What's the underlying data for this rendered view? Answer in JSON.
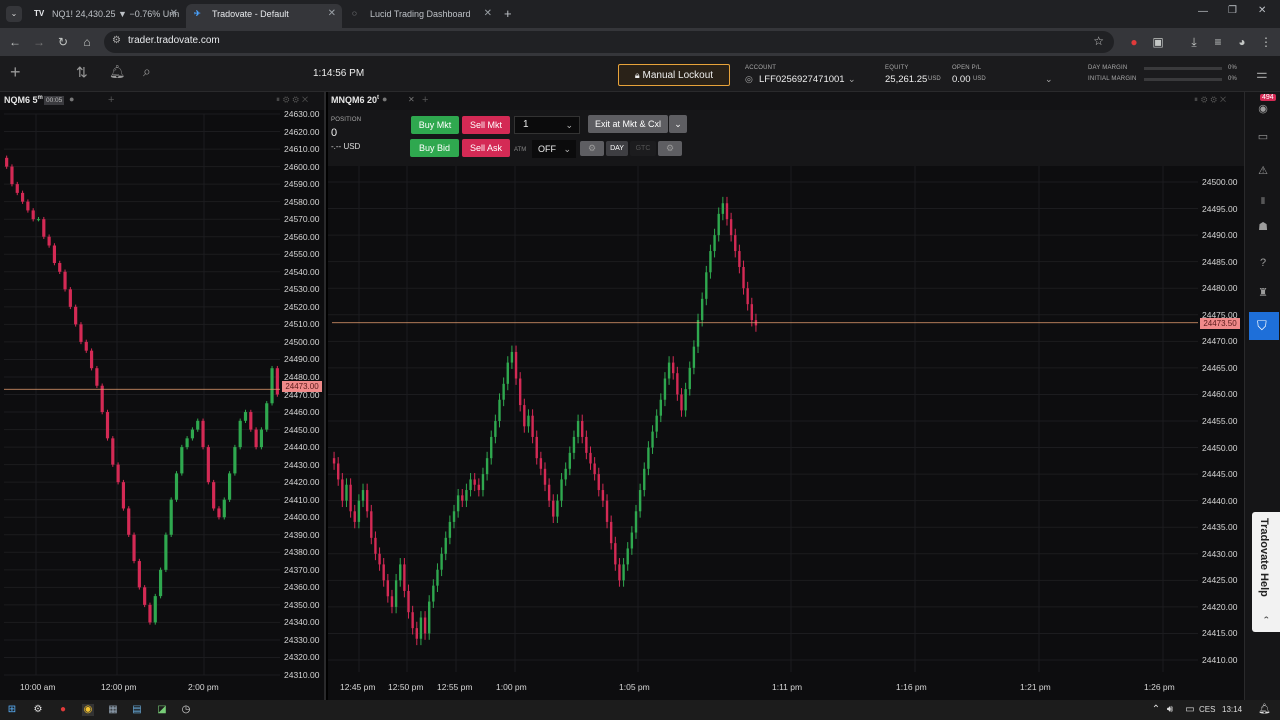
{
  "browser": {
    "tabs": [
      {
        "label": "NQ1! 24,430.25 ▼ −0.76% Unn",
        "icon": "tradingview-icon",
        "fav": "TV"
      },
      {
        "label": "Tradovate - Default",
        "icon": "tradovate-icon",
        "fav": "✈"
      },
      {
        "label": "Lucid Trading Dashboard",
        "icon": "globe-icon",
        "fav": "◌"
      }
    ],
    "url": "trader.tradovate.com"
  },
  "app": {
    "clock": "1:14:56 PM",
    "lock_label": "Manual Lockout",
    "account_label": "ACCOUNT",
    "account_id": "LFF0256927471001",
    "equity_label": "EQUITY",
    "equity_value": "25,261.25",
    "equity_unit": "USD",
    "openpl_label": "OPEN P/L",
    "openpl_value": "0.00",
    "openpl_unit": "USD",
    "day_margin_label": "DAY MARGIN",
    "day_margin_value": "0%",
    "initial_margin_label": "INITIAL MARGIN",
    "initial_margin_value": "0%"
  },
  "left_chart": {
    "title": "NQM6 5",
    "superscript": "m",
    "badge": "00:05",
    "y_ticks": [
      "24630.00",
      "24620.00",
      "24610.00",
      "24600.00",
      "24590.00",
      "24580.00",
      "24570.00",
      "24560.00",
      "24550.00",
      "24540.00",
      "24530.00",
      "24520.00",
      "24510.00",
      "24500.00",
      "24490.00",
      "24480.00",
      "24470.00",
      "24460.00",
      "24450.00",
      "24440.00",
      "24430.00",
      "24420.00",
      "24410.00",
      "24400.00",
      "24390.00",
      "24380.00",
      "24370.00",
      "24360.00",
      "24350.00",
      "24340.00",
      "24330.00",
      "24320.00",
      "24310.00"
    ],
    "price_tag": "24473.00",
    "x_ticks": [
      "10:00 am",
      "12:00 pm",
      "2:00 pm"
    ]
  },
  "right_chart": {
    "title": "MNQM6 20",
    "superscript": "t",
    "position_label": "POSITION",
    "position_value": "0",
    "pnl_value": "-.-- USD",
    "buy_mkt": "Buy Mkt",
    "sell_mkt": "Sell Mkt",
    "buy_bid": "Buy Bid",
    "sell_ask": "Sell Ask",
    "qty": "1",
    "exit_label": "Exit at Mkt & Cxl",
    "atm_label": "ATM",
    "atm_value": "OFF",
    "day_label": "DAY",
    "gtc_label": "GTC",
    "y_ticks": [
      "24500.00",
      "24495.00",
      "24490.00",
      "24485.00",
      "24480.00",
      "24475.00",
      "24470.00",
      "24465.00",
      "24460.00",
      "24455.00",
      "24450.00",
      "24445.00",
      "24440.00",
      "24435.00",
      "24430.00",
      "24425.00",
      "24420.00",
      "24415.00",
      "24410.00"
    ],
    "price_tag": "24473.50",
    "x_ticks": [
      "12:45 pm",
      "12:50 pm",
      "12:55 pm",
      "1:00 pm",
      "1:05 pm",
      "1:11 pm",
      "1:16 pm",
      "1:21 pm",
      "1:26 pm"
    ]
  },
  "sidebar": {
    "badge": "494",
    "help_label": "Tradovate Help"
  },
  "taskbar": {
    "lang": "CES",
    "time": "13:14"
  },
  "colors": {
    "up": "#2fa84f",
    "down": "#d42a55",
    "price_line": "#e8a070",
    "accent": "#1e6fd9"
  },
  "chart_data": [
    {
      "type": "candlestick",
      "title": "NQM6 5m",
      "x": [
        "10:00 am",
        "12:00 pm",
        "2:00 pm"
      ],
      "ylim": [
        24310,
        24630
      ],
      "last_price": 24473.0,
      "closes": [
        24600,
        24590,
        24585,
        24580,
        24575,
        24570,
        24570,
        24560,
        24555,
        24545,
        24540,
        24530,
        24520,
        24510,
        24500,
        24495,
        24485,
        24475,
        24460,
        24445,
        24430,
        24420,
        24405,
        24390,
        24375,
        24360,
        24350,
        24340,
        24355,
        24370,
        24390,
        24410,
        24425,
        24440,
        24445,
        24450,
        24455,
        24440,
        24420,
        24405,
        24400,
        24410,
        24425,
        24440,
        24455,
        24460,
        24450,
        24440,
        24450,
        24465,
        24485,
        24470
      ],
      "grid": true
    },
    {
      "type": "candlestick",
      "title": "MNQM6 20t",
      "x": [
        "12:45 pm",
        "12:50 pm",
        "12:55 pm",
        "1:00 pm",
        "1:05 pm",
        "1:11 pm",
        "1:16 pm",
        "1:21 pm",
        "1:26 pm"
      ],
      "ylim": [
        24410,
        24500
      ],
      "last_price": 24473.5,
      "closes": [
        24447,
        24444,
        24440,
        24443,
        24438,
        24436,
        24440,
        24442,
        24438,
        24433,
        24430,
        24428,
        24425,
        24422,
        24420,
        24425,
        24428,
        24423,
        24419,
        24416,
        24414,
        24418,
        24415,
        24421,
        24424,
        24427,
        24430,
        24433,
        24436,
        24438,
        24441,
        24440,
        24442,
        24444,
        24443,
        24442,
        24445,
        24448,
        24452,
        24455,
        24459,
        24462,
        24466,
        24468,
        24463,
        24458,
        24454,
        24456,
        24452,
        24448,
        24446,
        24443,
        24440,
        24437,
        24440,
        24444,
        24446,
        24449,
        24452,
        24455,
        24452,
        24449,
        24447,
        24445,
        24442,
        24440,
        24436,
        24432,
        24428,
        24425,
        24428,
        24431,
        24434,
        24438,
        24442,
        24446,
        24450,
        24453,
        24456,
        24459,
        24463,
        24466,
        24464,
        24460,
        24457,
        24461,
        24465,
        24469,
        24474,
        24478,
        24483,
        24487,
        24490,
        24494,
        24496,
        24493,
        24490,
        24487,
        24484,
        24480,
        24477,
        24474,
        24473
      ],
      "grid": true
    }
  ]
}
